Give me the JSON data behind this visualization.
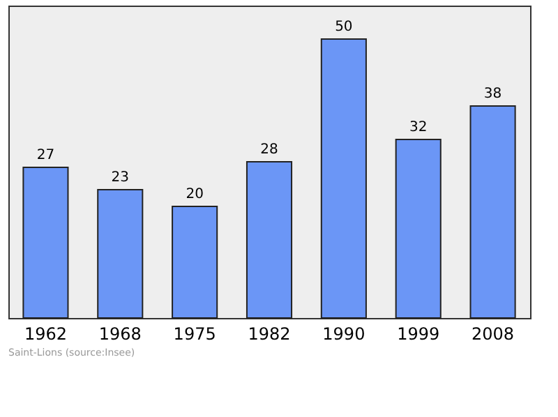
{
  "chart_data": {
    "type": "bar",
    "categories": [
      "1962",
      "1968",
      "1975",
      "1982",
      "1990",
      "1999",
      "2008"
    ],
    "values": [
      27,
      23,
      20,
      28,
      50,
      32,
      38
    ],
    "color": "#6b96f6",
    "data_labels": true,
    "ylim": [
      0,
      56
    ],
    "tick_labels": "x",
    "grid": false,
    "annotations": [
      "Saint-Lions    (source:Insee)"
    ]
  }
}
